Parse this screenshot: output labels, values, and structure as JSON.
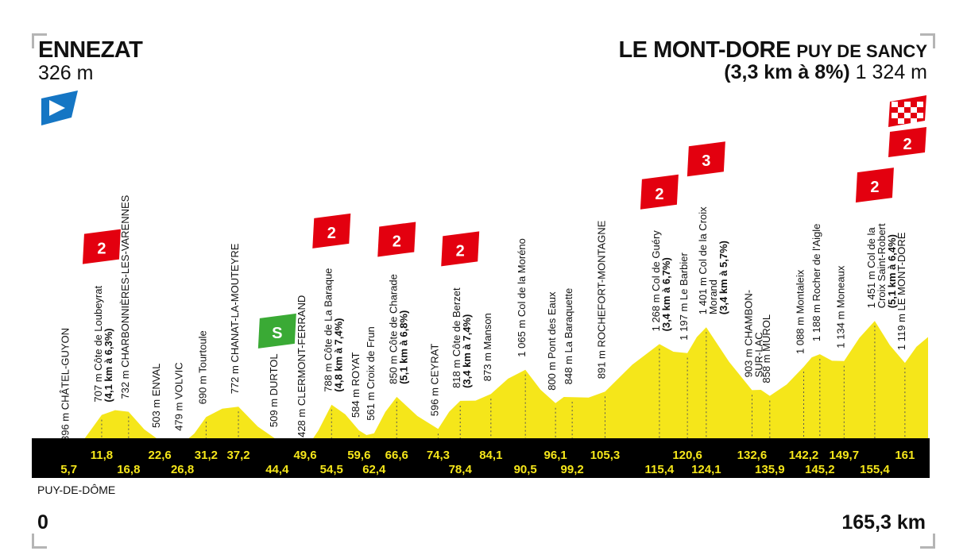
{
  "colors": {
    "profile_fill": "#f5e61a",
    "km_band": "#000000",
    "km_text": "#f5e61a",
    "climb_badge": "#e3000f",
    "sprint_badge": "#3aaa35",
    "start_flag": "#1576c4"
  },
  "start": {
    "name": "ENNEZAT",
    "altitude": "326 m"
  },
  "finish": {
    "name": "LE MONT-DORE",
    "subname": "PUY DE SANCY",
    "climb_info": "(3,3 km à 8%)",
    "altitude": "1 324 m",
    "badge": "2"
  },
  "region": "PUY-DE-DÔME",
  "km_start": "0",
  "km_end": "165,3 km",
  "total_km": 165.3,
  "chart_data": {
    "type": "area",
    "x": [
      0,
      5.7,
      11.8,
      16.8,
      22.6,
      26.8,
      31.2,
      37.2,
      44.4,
      49.6,
      54.5,
      59.6,
      62.4,
      66.6,
      74.3,
      78.4,
      84.1,
      90.5,
      96.1,
      99.2,
      105.3,
      115.4,
      120.6,
      124.1,
      132.6,
      135.9,
      142.2,
      145.2,
      149.7,
      155.4,
      161,
      165.3
    ],
    "y": [
      326,
      396,
      707,
      732,
      503,
      479,
      690,
      772,
      509,
      428,
      788,
      584,
      561,
      850,
      596,
      818,
      873,
      1065,
      800,
      848,
      891,
      1268,
      1197,
      1401,
      903,
      858,
      1088,
      1188,
      1134,
      1451,
      1119,
      1324
    ]
  },
  "waypoints": [
    {
      "km": 5.7,
      "alt": 396,
      "label": "396 m CHÂTEL-GUYON"
    },
    {
      "km": 11.8,
      "alt": 707,
      "label": "707 m Côte de Loubeyrat",
      "sub": "(4,1 km à 6,3%)",
      "badge": "2"
    },
    {
      "km": 16.8,
      "alt": 732,
      "label": "732 m CHARBONNIÈRES-LES-VARENNES"
    },
    {
      "km": 22.6,
      "alt": 503,
      "label": "503 m ENVAL"
    },
    {
      "km": 26.8,
      "alt": 479,
      "label": "479 m VOLVIC"
    },
    {
      "km": 31.2,
      "alt": 690,
      "label": "690 m Tourtoule"
    },
    {
      "km": 37.2,
      "alt": 772,
      "label": "772 m CHANAT-LA-MOUTEYRE"
    },
    {
      "km": 44.4,
      "alt": 509,
      "label": "509 m DURTOL",
      "sprint": "S"
    },
    {
      "km": 49.6,
      "alt": 428,
      "label": "428 m CLERMONT-FERRAND"
    },
    {
      "km": 54.5,
      "alt": 788,
      "label": "788 m Côte de La Baraque",
      "sub": "(4,8 km à 7,4%)",
      "badge": "2"
    },
    {
      "km": 59.6,
      "alt": 584,
      "label": "584 m ROYAT"
    },
    {
      "km": 62.4,
      "alt": 561,
      "label": "561 m Croix de Frun"
    },
    {
      "km": 66.6,
      "alt": 850,
      "label": "850 m Côte de Charade",
      "sub": "(5,1 km à 6,8%)",
      "badge": "2"
    },
    {
      "km": 74.3,
      "alt": 596,
      "label": "596 m CEYRAT"
    },
    {
      "km": 78.4,
      "alt": 818,
      "label": "818 m Côte de Berzet",
      "sub": "(3,4 km à 7,4%)",
      "badge": "2"
    },
    {
      "km": 84.1,
      "alt": 873,
      "label": "873 m Manson"
    },
    {
      "km": 90.5,
      "alt": 1065,
      "label": "1 065 m Col de la Moréno"
    },
    {
      "km": 96.1,
      "alt": 800,
      "label": "800 m Pont des Eaux"
    },
    {
      "km": 99.2,
      "alt": 848,
      "label": "848 m La Baraquette"
    },
    {
      "km": 105.3,
      "alt": 891,
      "label": "891 m ROCHEFORT-MONTAGNE"
    },
    {
      "km": 115.4,
      "alt": 1268,
      "label": "1 268 m Col de Guéry",
      "sub": "(3,4 km à 6,7%)",
      "badge": "2"
    },
    {
      "km": 120.6,
      "alt": 1197,
      "label": "1 197 m Le Barbier"
    },
    {
      "km": 124.1,
      "alt": 1401,
      "label": "1 401 m Col de la Croix",
      "label2": "Morand",
      "sub": "(3,4 km à 5,7%)",
      "badge": "3"
    },
    {
      "km": 132.6,
      "alt": 903,
      "label": "903 m CHAMBON-",
      "label2": "SUR-LAC"
    },
    {
      "km": 135.9,
      "alt": 858,
      "label": "858 m MUROL"
    },
    {
      "km": 142.2,
      "alt": 1088,
      "label": "1 088 m Montaleix"
    },
    {
      "km": 145.2,
      "alt": 1188,
      "label": "1 188 m Rocher de l'Aigle"
    },
    {
      "km": 149.7,
      "alt": 1134,
      "label": "1 134 m Moneaux"
    },
    {
      "km": 155.4,
      "alt": 1451,
      "label": "1 451 m Col de la",
      "label2": "Croix Saint-Robert",
      "sub": "(5,1 km à 6,4%)",
      "badge": "2"
    },
    {
      "km": 161,
      "alt": 1119,
      "label": "1 119 m LE MONT-DORE"
    }
  ],
  "km_labels_top": [
    "11,8",
    "22,6",
    "31,2",
    "37,2",
    "49,6",
    "59,6",
    "66,6",
    "74,3",
    "84,1",
    "96,1",
    "105,3",
    "120,6",
    "132,6",
    "142,2",
    "149,7",
    "161"
  ],
  "km_labels_bottom": [
    "5,7",
    "16,8",
    "26,8",
    "44,4",
    "54,5",
    "62,4",
    "78,4",
    "90,5",
    "99,2",
    "115,4",
    "124,1",
    "135,9",
    "145,2",
    "155,4"
  ]
}
